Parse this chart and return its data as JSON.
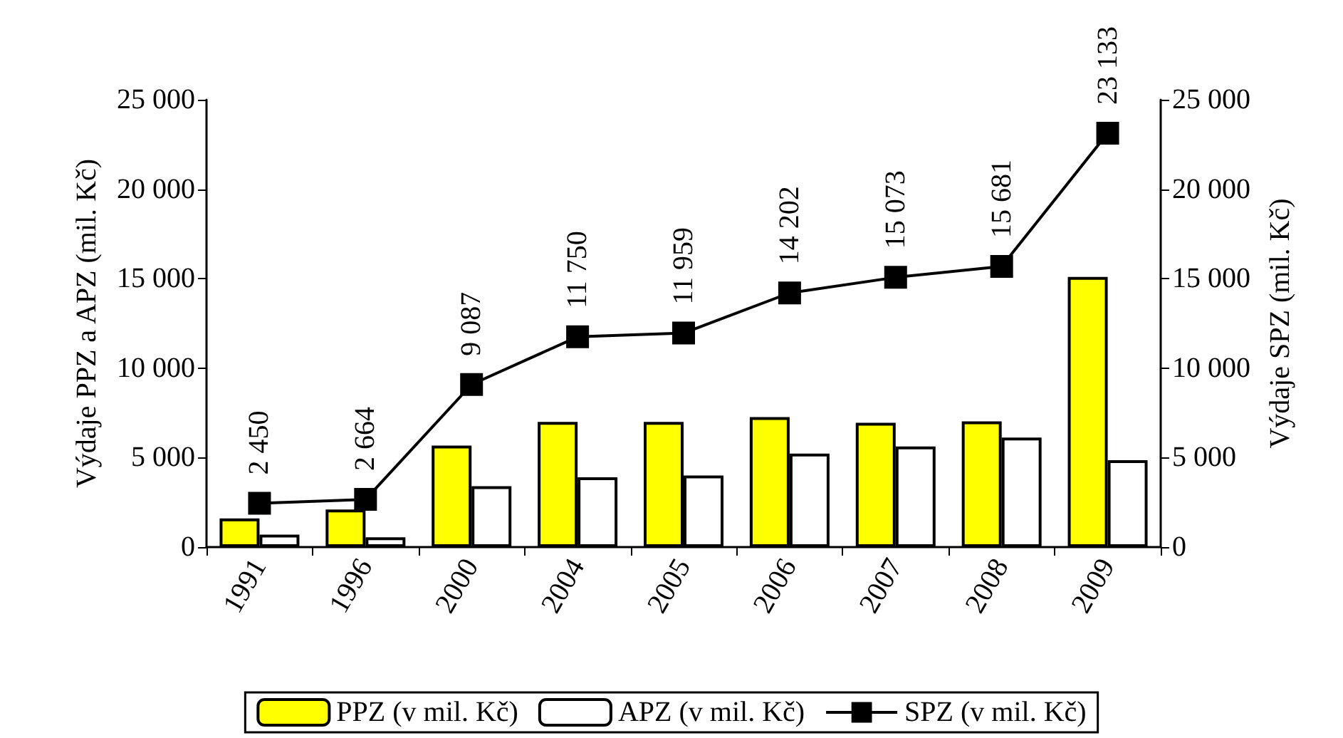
{
  "chart_data": {
    "type": "bar",
    "ylabel": "Výdaje PPZ a APZ (mil. Kč)",
    "y2label": "Výdaje SPZ (mil. Kč)",
    "categories": [
      "1991",
      "1996",
      "2000",
      "2004",
      "2005",
      "2006",
      "2007",
      "2008",
      "2009"
    ],
    "series": [
      {
        "name": "PPZ (v mil. Kč)",
        "color": "#ffff00",
        "values": [
          1600,
          2100,
          5670,
          7000,
          7000,
          7270,
          6950,
          7030,
          15100
        ]
      },
      {
        "name": "APZ (v mil. Kč)",
        "color": "#ffffff",
        "values": [
          700,
          550,
          3400,
          3900,
          4000,
          5220,
          5620,
          6120,
          4860
        ]
      },
      {
        "name": "SPZ (v mil. Kč)",
        "type": "line",
        "axis": "y2",
        "color": "#000000",
        "marker": "square",
        "values": [
          2450,
          2664,
          9087,
          11750,
          11959,
          14202,
          15073,
          15681,
          23133
        ],
        "value_labels": [
          "2 450",
          "2 664",
          "9 087",
          "11 750",
          "11 959",
          "14 202",
          "15 073",
          "15 681",
          "23 133"
        ]
      }
    ],
    "ylim": [
      0,
      25000
    ],
    "yticks": [
      {
        "value": 0,
        "label": "0"
      },
      {
        "value": 5000,
        "label": "5 000"
      },
      {
        "value": 10000,
        "label": "10 000"
      },
      {
        "value": 15000,
        "label": "15 000"
      },
      {
        "value": 20000,
        "label": "20 000"
      },
      {
        "value": 25000,
        "label": "25 000"
      }
    ],
    "y2lim": [
      0,
      25000
    ],
    "y2ticks": [
      {
        "value": 0,
        "label": "0"
      },
      {
        "value": 5000,
        "label": "5 000"
      },
      {
        "value": 10000,
        "label": "10 000"
      },
      {
        "value": 15000,
        "label": "15 000"
      },
      {
        "value": 20000,
        "label": "20 000"
      },
      {
        "value": 25000,
        "label": "25 000"
      }
    ],
    "grid": false,
    "legend": "bottom"
  }
}
